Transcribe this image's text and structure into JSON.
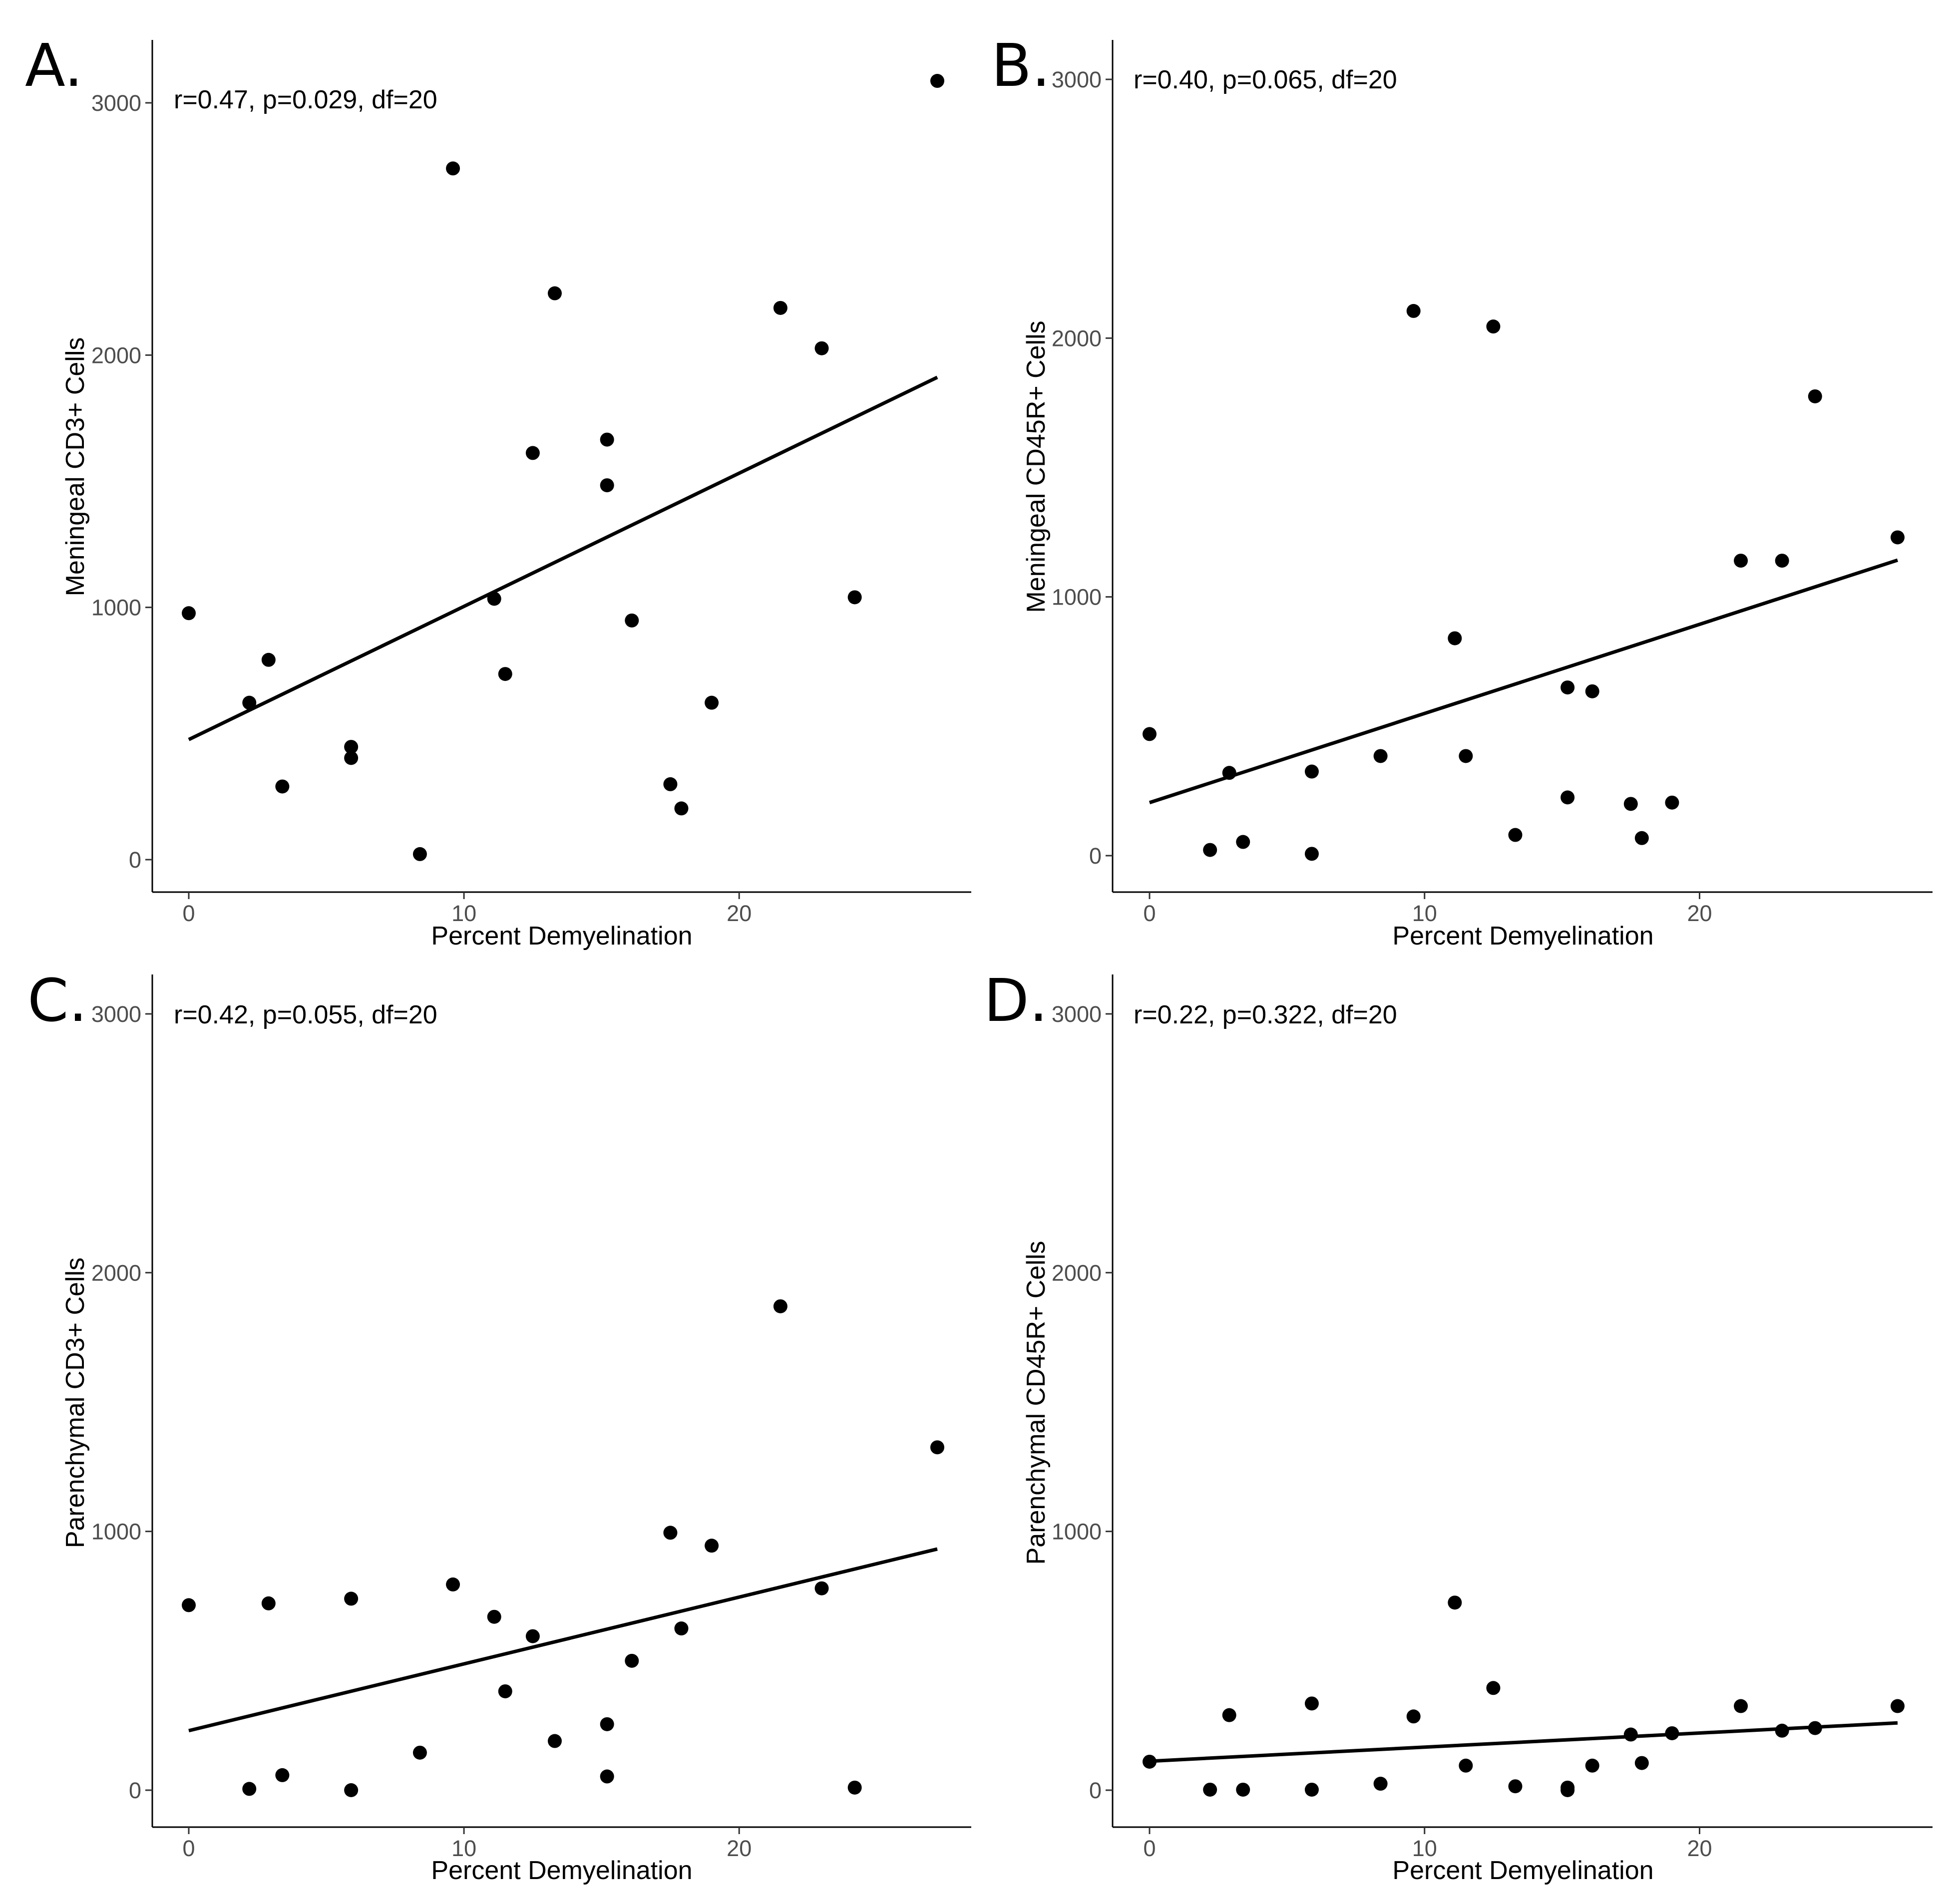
{
  "figure": {
    "panels": [
      "A.",
      "B.",
      "C.",
      "D."
    ]
  },
  "chart_data": [
    {
      "type": "scatter",
      "panel": "A.",
      "annotation": "r=0.47, p=0.029, df=20",
      "xlabel": "Percent Demyelination",
      "ylabel": "Meningeal CD3+ Cells",
      "xlim": [
        -1.35,
        28.5
      ],
      "ylim": [
        -130,
        3200
      ],
      "xticks": [
        0,
        10,
        20
      ],
      "yticks": [
        0,
        1000,
        2000,
        3000
      ],
      "x": [
        0,
        2.2,
        2.9,
        3.4,
        5.9,
        5.9,
        8.4,
        9.6,
        11.1,
        11.5,
        12.5,
        13.3,
        15.2,
        15.2,
        16.1,
        17.5,
        17.9,
        19.0,
        21.5,
        23.0,
        24.2,
        27.2
      ],
      "y": [
        977,
        622,
        792,
        290,
        447,
        403,
        22,
        2740,
        1034,
        736,
        1612,
        2245,
        1665,
        1484,
        948,
        299,
        203,
        622,
        2187,
        2027,
        1040,
        3087
      ],
      "fit": {
        "x": [
          0,
          27.2
        ],
        "y": [
          476,
          1912
        ]
      }
    },
    {
      "type": "scatter",
      "panel": "B.",
      "annotation": "r=0.40, p=0.065, df=20",
      "xlabel": "Percent Demyelination",
      "ylabel": "Meningeal CD45R+ Cells",
      "xlim": [
        -1.35,
        28.5
      ],
      "ylim": [
        -130,
        3150
      ],
      "xticks": [
        0,
        10,
        20
      ],
      "yticks": [
        0,
        1000,
        2000,
        3000
      ],
      "x": [
        0,
        2.2,
        2.9,
        3.4,
        5.9,
        5.9,
        8.4,
        9.6,
        11.1,
        11.5,
        12.5,
        13.3,
        15.2,
        15.2,
        16.1,
        17.5,
        17.9,
        19.0,
        21.5,
        23.0,
        24.2,
        27.2
      ],
      "y": [
        470,
        22,
        320,
        53,
        325,
        7,
        385,
        2105,
        840,
        385,
        2045,
        80,
        650,
        225,
        635,
        200,
        68,
        205,
        1140,
        1140,
        1775,
        1230
      ],
      "fit": {
        "x": [
          0,
          27.2
        ],
        "y": [
          205,
          1142
        ]
      }
    },
    {
      "type": "scatter",
      "panel": "C.",
      "annotation": "r=0.42, p=0.055, df=20",
      "xlabel": "Percent Demyelination",
      "ylabel": "Parenchymal CD3+ Cells",
      "xlim": [
        -1.35,
        28.5
      ],
      "ylim": [
        -130,
        3150
      ],
      "xticks": [
        0,
        10,
        20
      ],
      "yticks": [
        0,
        1000,
        2000,
        3000
      ],
      "x": [
        0,
        2.2,
        2.9,
        3.4,
        5.9,
        5.9,
        8.4,
        9.6,
        11.1,
        11.5,
        12.5,
        13.3,
        15.2,
        15.2,
        16.1,
        17.5,
        17.9,
        19.0,
        21.5,
        23.0,
        24.2,
        27.2
      ],
      "y": [
        715,
        5,
        722,
        58,
        0,
        740,
        145,
        795,
        670,
        382,
        595,
        190,
        255,
        53,
        500,
        995,
        625,
        945,
        1870,
        780,
        10,
        1325
      ],
      "fit": {
        "x": [
          0,
          27.2
        ],
        "y": [
          230,
          932
        ]
      }
    },
    {
      "type": "scatter",
      "panel": "D.",
      "annotation": "r=0.22, p=0.322, df=20",
      "xlabel": "Percent Demyelination",
      "ylabel": "Parenchymal CD45R+ Cells",
      "xlim": [
        -1.35,
        28.5
      ],
      "ylim": [
        -130,
        3150
      ],
      "xticks": [
        0,
        10,
        20
      ],
      "yticks": [
        0,
        1000,
        2000,
        3000
      ],
      "x": [
        0,
        2.2,
        2.9,
        3.4,
        5.9,
        5.9,
        8.4,
        9.6,
        11.1,
        11.5,
        12.5,
        13.3,
        15.2,
        15.2,
        16.1,
        17.5,
        17.9,
        19.0,
        21.5,
        23.0,
        24.2,
        27.2
      ],
      "y": [
        110,
        2,
        290,
        2,
        335,
        2,
        25,
        285,
        725,
        95,
        395,
        15,
        0,
        10,
        95,
        215,
        105,
        220,
        325,
        230,
        240,
        325
      ],
      "fit": {
        "x": [
          0,
          27.2
        ],
        "y": [
          112,
          260
        ]
      }
    }
  ]
}
